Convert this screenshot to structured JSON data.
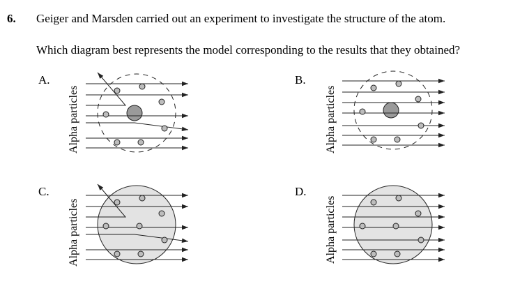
{
  "question": {
    "number": "6.",
    "text": "Geiger and Marsden carried out an experiment to investigate the structure of the atom.",
    "prompt": "Which diagram best represents the model corresponding to the results that they obtained?"
  },
  "options": [
    {
      "key": "A",
      "label": "A.",
      "axis_label": "Alpha particles",
      "atom_boundary": "dashed",
      "filled": false,
      "nucleus": true,
      "deflections": "large"
    },
    {
      "key": "B",
      "label": "B.",
      "axis_label": "Alpha particles",
      "atom_boundary": "dashed",
      "filled": false,
      "nucleus": true,
      "deflections": "none"
    },
    {
      "key": "C",
      "label": "C.",
      "axis_label": "Alpha particles",
      "atom_boundary": "solid",
      "filled": true,
      "nucleus": false,
      "deflections": "large"
    },
    {
      "key": "D",
      "label": "D.",
      "axis_label": "Alpha particles",
      "atom_boundary": "solid",
      "filled": true,
      "nucleus": false,
      "deflections": "none"
    }
  ],
  "colors": {
    "atom_fill": "#e3e3e3",
    "nucleus_fill": "#9a9a9a",
    "electron_fill": "#bdbdbd",
    "ink": "#222222"
  }
}
